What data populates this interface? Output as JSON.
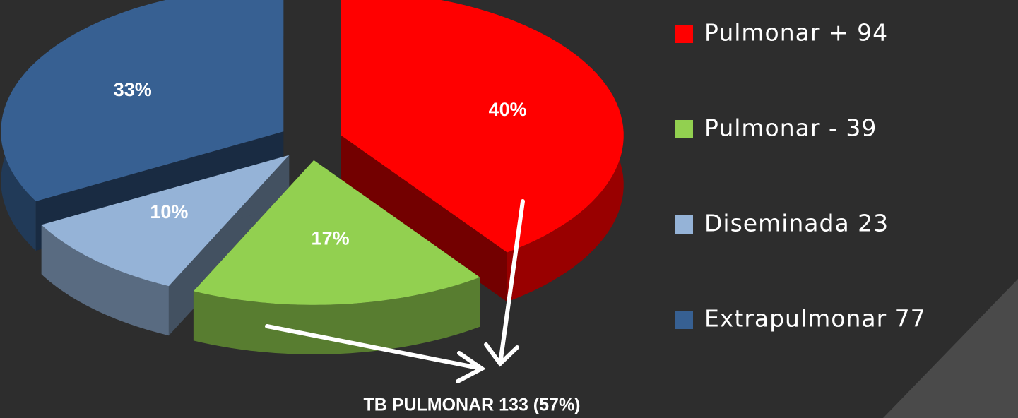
{
  "chart_data": {
    "type": "pie",
    "categories": [
      "Pulmonar + 94",
      "Pulmonar - 39",
      "Diseminada 23",
      "Extrapulmonar  77"
    ],
    "values": [
      40,
      17,
      10,
      33
    ],
    "value_labels": [
      "40%",
      "17%",
      "10%",
      "33%"
    ],
    "colors": [
      "#ff0000",
      "#92d050",
      "#95b3d7",
      "#376092"
    ],
    "legend": "right",
    "annotation": "TB PULMONAR 133 (57%)"
  }
}
